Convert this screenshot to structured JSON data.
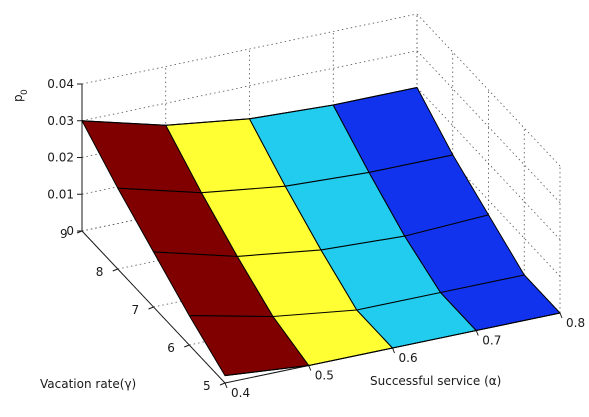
{
  "chart_data": {
    "type": "surface",
    "x": {
      "label": "Successful service (α)",
      "ticks": [
        0.4,
        0.5,
        0.6,
        0.7,
        0.8
      ],
      "tick_labels": [
        "0.4",
        "0.5",
        "0.6",
        "0.7",
        "0.8"
      ],
      "range": [
        0.4,
        0.8
      ],
      "grid_values": [
        0.4,
        0.5,
        0.6,
        0.7,
        0.8
      ]
    },
    "y": {
      "label": "Vacation rate(γ)",
      "ticks": [
        5,
        6,
        7,
        8,
        9
      ],
      "tick_labels": [
        "5",
        "6",
        "7",
        "8",
        "9"
      ],
      "range": [
        5,
        9
      ],
      "grid_values": [
        5,
        6,
        7,
        8,
        9
      ]
    },
    "z": {
      "label": "p0",
      "label_main": "p",
      "label_sub": "0",
      "ticks": [
        0,
        0.01,
        0.02,
        0.03,
        0.04
      ],
      "tick_labels": [
        "0",
        "0.01",
        "0.02",
        "0.03",
        "0.04"
      ],
      "range": [
        0,
        0.04
      ]
    },
    "z_values": [
      [
        0.03,
        0.024,
        0.021,
        0.02,
        0.02
      ],
      [
        0.022,
        0.016,
        0.013,
        0.012,
        0.012
      ],
      [
        0.015,
        0.009,
        0.006,
        0.005,
        0.006
      ],
      [
        0.008,
        0.003,
        0.0,
        0.0,
        0.0
      ],
      [
        0.002,
        0.0,
        0.0,
        0.0,
        0.0
      ]
    ],
    "z_values_note_rows": "rows correspond to y grid_values from 9 down to 5; columns to x grid_values 0.4..0.8",
    "patch_colors": [
      "#800000",
      "#ffff33",
      "#22ccee",
      "#1133ee"
    ],
    "grid": true
  }
}
